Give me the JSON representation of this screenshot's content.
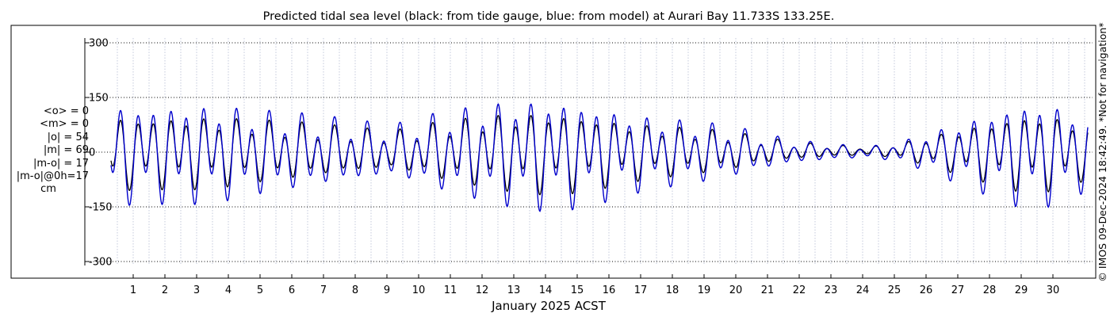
{
  "chart_data": {
    "type": "line",
    "title": "Predicted tidal sea level (black: from tide gauge, blue: from model) at Aurari Bay 11.733S 133.25E.",
    "xlabel": "January 2025 ACST",
    "ylabel": "",
    "xlim": [
      0.3,
      31.1
    ],
    "ylim": [
      -320,
      330
    ],
    "y_ticks": [
      -300,
      -150,
      0,
      150,
      300
    ],
    "x_ticks": [
      1,
      2,
      3,
      4,
      5,
      6,
      7,
      8,
      9,
      10,
      11,
      12,
      13,
      14,
      15,
      16,
      17,
      18,
      19,
      20,
      21,
      22,
      23,
      24,
      25,
      26,
      27,
      28,
      29,
      30
    ],
    "grid": true,
    "side_note": "© IMOS 09-Dec-2024 18:42:49. *Not for navigation*",
    "stats": {
      "mean_obs": "<o> = 0",
      "mean_model": "<m> = 0",
      "abs_obs": "|o| = 54",
      "abs_model": "|m| = 69",
      "abs_diff": "|m-o| = 17",
      "abs_diff_0h": "|m-o|@0h=17",
      "unit": "cm"
    },
    "envelope_x": [
      0.3,
      0.5,
      1.0,
      1.5,
      2.0,
      2.5,
      3.0,
      3.5,
      4.0,
      4.5,
      5.0,
      5.5,
      6.0,
      6.5,
      7.0,
      7.5,
      8.0,
      8.5,
      9.0,
      9.5,
      10.0,
      10.5,
      11.0,
      11.5,
      12.0,
      12.5,
      13.0,
      13.5,
      14.0,
      14.5,
      15.0,
      15.5,
      16.0,
      16.5,
      17.0,
      17.5,
      18.0,
      18.5,
      19.0,
      19.5,
      20.0,
      20.5,
      21.0,
      21.5,
      22.0,
      22.5,
      23.0,
      23.5,
      24.0,
      24.5,
      25.0,
      25.5,
      26.0,
      26.5,
      27.0,
      27.5,
      28.0,
      28.5,
      29.0,
      29.5,
      30.0,
      30.5,
      31.1
    ],
    "envelope_amplitude_cm": [
      125,
      135,
      130,
      132,
      128,
      138,
      130,
      128,
      125,
      118,
      112,
      108,
      102,
      98,
      92,
      86,
      82,
      75,
      70,
      75,
      85,
      100,
      110,
      118,
      128,
      135,
      142,
      145,
      148,
      146,
      140,
      132,
      122,
      110,
      102,
      95,
      90,
      85,
      80,
      72,
      65,
      55,
      45,
      36,
      30,
      25,
      22,
      18,
      15,
      18,
      24,
      36,
      50,
      65,
      80,
      95,
      110,
      125,
      138,
      140,
      135,
      120,
      100
    ],
    "series": [
      {
        "name": "from tide gauge",
        "color": "#000000",
        "amplitude_ratio": 0.74,
        "offset_cm": 3
      },
      {
        "name": "from model",
        "color": "#0000cc",
        "amplitude_ratio": 1.0,
        "offset_cm": 0
      }
    ],
    "colors": {
      "grid_vertical": "#aab2cc",
      "grid_horizontal": "#000000",
      "frame": "#000000"
    }
  }
}
